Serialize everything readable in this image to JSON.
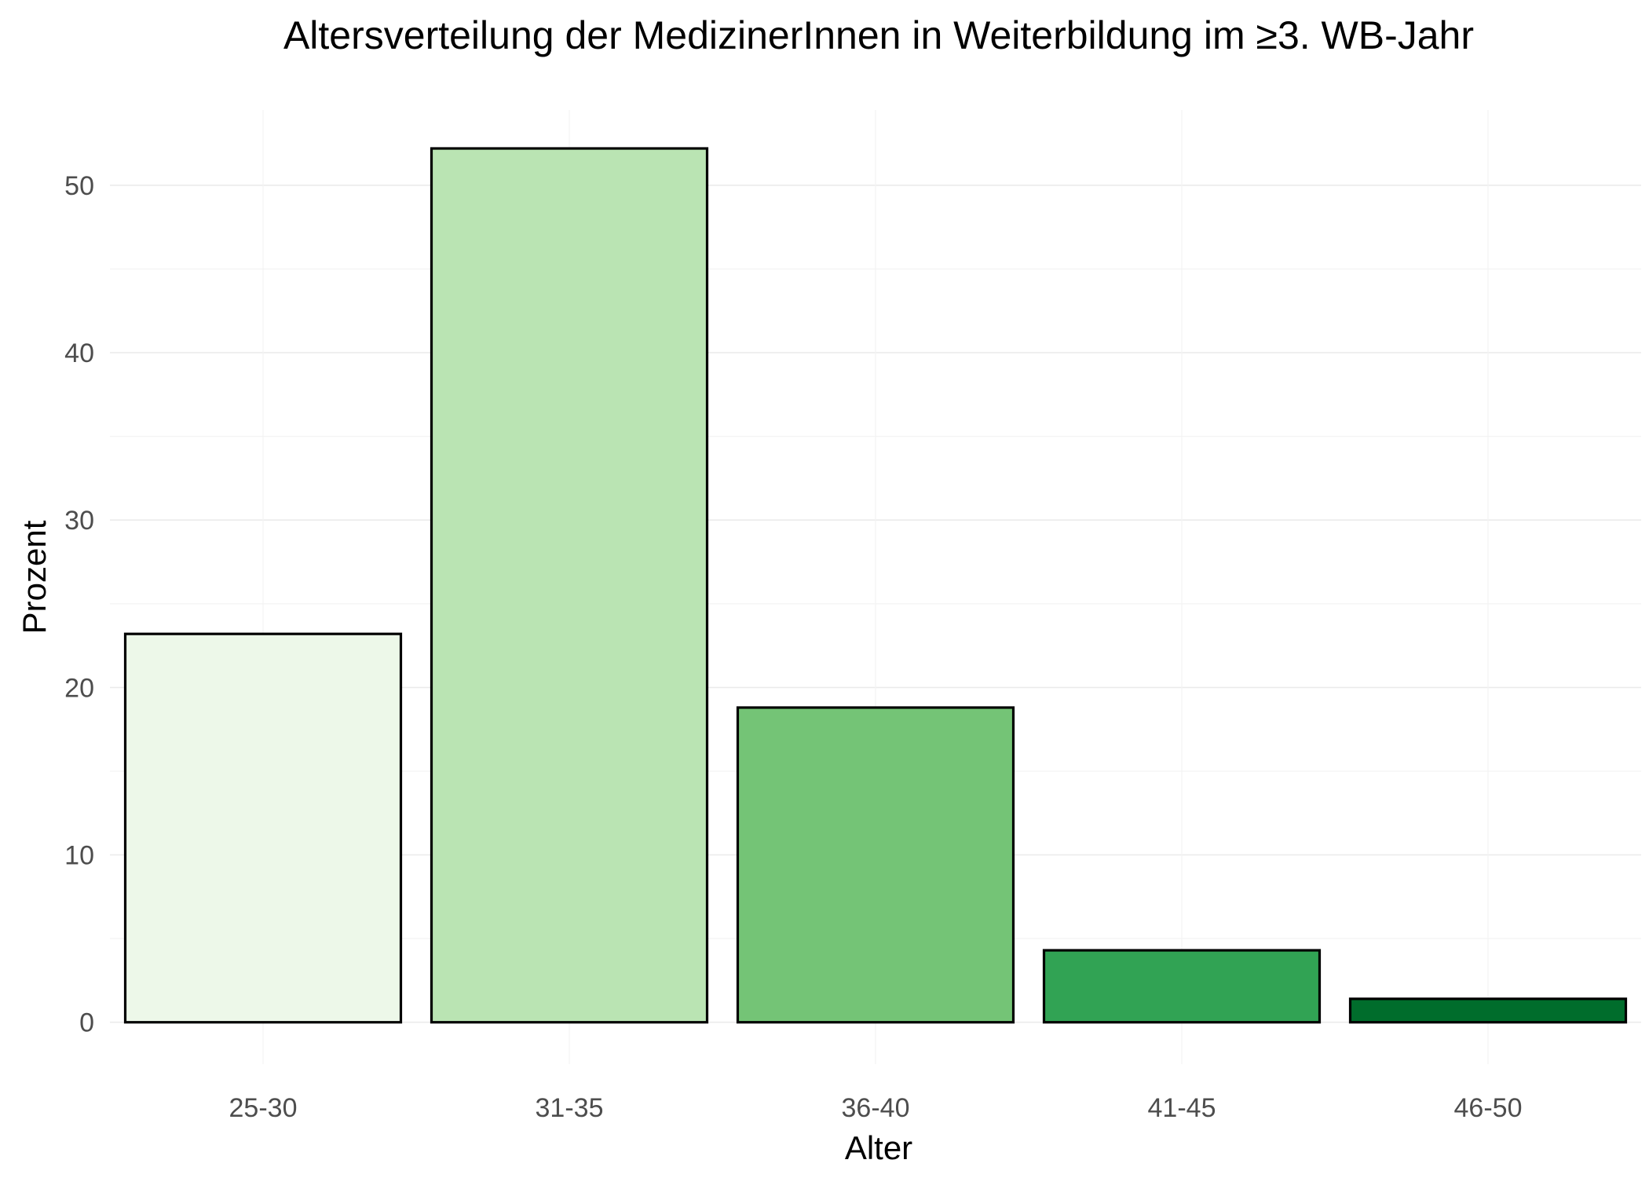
{
  "chart_data": {
    "type": "bar",
    "title": "Altersverteilung der MedizinerInnen in Weiterbildung im ≥3. WB-Jahr",
    "xlabel": "Alter",
    "ylabel": "Prozent",
    "categories": [
      "25-30",
      "31-35",
      "36-40",
      "41-45",
      "46-50"
    ],
    "values": [
      23.2,
      52.2,
      18.8,
      4.3,
      1.4
    ],
    "colors": [
      "#edf8e9",
      "#bae4b3",
      "#74c476",
      "#31a354",
      "#006d2c"
    ],
    "ylim": [
      -2.5,
      54.5
    ],
    "yticks": [
      0,
      10,
      20,
      30,
      40,
      50
    ],
    "ytick_labels": [
      "0",
      "10",
      "20",
      "30",
      "40",
      "50"
    ],
    "grid": true,
    "legend": "none"
  }
}
